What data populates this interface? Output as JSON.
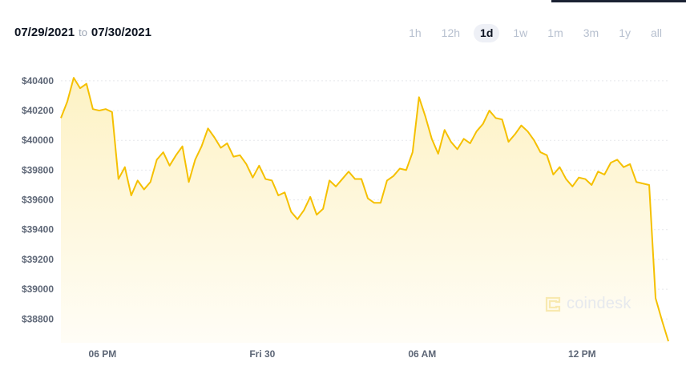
{
  "header": {
    "start_date": "07/29/2021",
    "to_label": "to",
    "end_date": "07/30/2021"
  },
  "periods": [
    {
      "label": "1h",
      "active": false
    },
    {
      "label": "12h",
      "active": false
    },
    {
      "label": "1d",
      "active": true
    },
    {
      "label": "1w",
      "active": false
    },
    {
      "label": "1m",
      "active": false
    },
    {
      "label": "3m",
      "active": false
    },
    {
      "label": "1y",
      "active": false
    },
    {
      "label": "all",
      "active": false
    }
  ],
  "watermark": {
    "text": "coindesk",
    "icon": "coindesk-logo-icon"
  },
  "colors": {
    "line": "#f5c000",
    "fill_top": "#fdf2c4",
    "fill_bottom": "#fffdf6",
    "grid": "#e5e7eb"
  },
  "chart_data": {
    "type": "area",
    "title": "",
    "xlabel": "",
    "ylabel": "",
    "y_prefix": "$",
    "ylim": [
      38640,
      40480
    ],
    "yticks": [
      40400,
      40200,
      40000,
      39800,
      39600,
      39400,
      39200,
      39000,
      38800
    ],
    "x_ticks": [
      {
        "label": "06 PM",
        "index": 6.5
      },
      {
        "label": "Fri 30",
        "index": 31.5
      },
      {
        "label": "06 AM",
        "index": 56.5
      },
      {
        "label": "12 PM",
        "index": 81.5
      }
    ],
    "grid": true,
    "legend": "none",
    "values": [
      40150,
      40260,
      40420,
      40350,
      40380,
      40210,
      40200,
      40210,
      40190,
      39740,
      39820,
      39630,
      39730,
      39670,
      39720,
      39870,
      39920,
      39830,
      39900,
      39960,
      39720,
      39870,
      39960,
      40080,
      40020,
      39950,
      39980,
      39890,
      39900,
      39840,
      39750,
      39830,
      39740,
      39730,
      39630,
      39650,
      39520,
      39470,
      39530,
      39620,
      39500,
      39540,
      39730,
      39690,
      39740,
      39790,
      39740,
      39740,
      39610,
      39580,
      39580,
      39730,
      39760,
      39810,
      39800,
      39920,
      40290,
      40160,
      40010,
      39910,
      40070,
      39990,
      39940,
      40010,
      39980,
      40060,
      40110,
      40200,
      40150,
      40140,
      39990,
      40040,
      40100,
      40060,
      40000,
      39920,
      39900,
      39770,
      39820,
      39740,
      39690,
      39750,
      39740,
      39700,
      39790,
      39770,
      39850,
      39870,
      39820,
      39840,
      39720,
      39710,
      39700,
      38940,
      38790,
      38650
    ]
  }
}
